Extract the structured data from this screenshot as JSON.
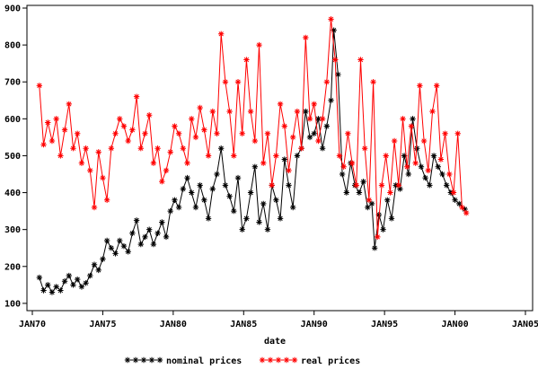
{
  "chart_data": {
    "type": "line",
    "title": "",
    "xlabel": "date",
    "ylabel": "",
    "x_ticks": [
      "JAN70",
      "JAN75",
      "JAN80",
      "JAN85",
      "JAN90",
      "JAN95",
      "JAN00",
      "JAN05"
    ],
    "x_range": [
      1970,
      2005
    ],
    "y_ticks": [
      100,
      200,
      300,
      400,
      500,
      600,
      700,
      800,
      900
    ],
    "ylim": [
      90,
      900
    ],
    "grid": false,
    "legend_position": "bottom",
    "series": [
      {
        "name": "nominal prices",
        "color": "#000000",
        "marker": "asterisk",
        "points": [
          [
            1970.5,
            170
          ],
          [
            1970.8,
            135
          ],
          [
            1971.1,
            150
          ],
          [
            1971.4,
            130
          ],
          [
            1971.7,
            145
          ],
          [
            1972.0,
            135
          ],
          [
            1972.3,
            160
          ],
          [
            1972.6,
            175
          ],
          [
            1972.9,
            150
          ],
          [
            1973.2,
            165
          ],
          [
            1973.5,
            145
          ],
          [
            1973.8,
            155
          ],
          [
            1974.1,
            175
          ],
          [
            1974.4,
            205
          ],
          [
            1974.7,
            190
          ],
          [
            1975.0,
            220
          ],
          [
            1975.3,
            270
          ],
          [
            1975.6,
            250
          ],
          [
            1975.9,
            235
          ],
          [
            1976.2,
            270
          ],
          [
            1976.5,
            255
          ],
          [
            1976.8,
            240
          ],
          [
            1977.1,
            290
          ],
          [
            1977.4,
            325
          ],
          [
            1977.7,
            260
          ],
          [
            1978.0,
            280
          ],
          [
            1978.3,
            300
          ],
          [
            1978.6,
            260
          ],
          [
            1978.9,
            290
          ],
          [
            1979.2,
            320
          ],
          [
            1979.5,
            280
          ],
          [
            1979.8,
            350
          ],
          [
            1980.1,
            380
          ],
          [
            1980.4,
            360
          ],
          [
            1980.7,
            410
          ],
          [
            1981.0,
            440
          ],
          [
            1981.3,
            400
          ],
          [
            1981.6,
            360
          ],
          [
            1981.9,
            420
          ],
          [
            1982.2,
            380
          ],
          [
            1982.5,
            330
          ],
          [
            1982.8,
            410
          ],
          [
            1983.1,
            450
          ],
          [
            1983.4,
            520
          ],
          [
            1983.7,
            420
          ],
          [
            1984.0,
            390
          ],
          [
            1984.3,
            350
          ],
          [
            1984.6,
            440
          ],
          [
            1984.9,
            300
          ],
          [
            1985.2,
            330
          ],
          [
            1985.5,
            400
          ],
          [
            1985.8,
            470
          ],
          [
            1986.1,
            320
          ],
          [
            1986.4,
            370
          ],
          [
            1986.7,
            300
          ],
          [
            1987.0,
            420
          ],
          [
            1987.3,
            380
          ],
          [
            1987.6,
            330
          ],
          [
            1987.9,
            490
          ],
          [
            1988.2,
            420
          ],
          [
            1988.5,
            360
          ],
          [
            1988.8,
            500
          ],
          [
            1989.1,
            520
          ],
          [
            1989.4,
            620
          ],
          [
            1989.7,
            550
          ],
          [
            1990.0,
            560
          ],
          [
            1990.3,
            600
          ],
          [
            1990.6,
            520
          ],
          [
            1990.9,
            580
          ],
          [
            1991.2,
            650
          ],
          [
            1991.4,
            840
          ],
          [
            1991.7,
            720
          ],
          [
            1992.0,
            450
          ],
          [
            1992.3,
            400
          ],
          [
            1992.6,
            480
          ],
          [
            1992.9,
            420
          ],
          [
            1993.2,
            400
          ],
          [
            1993.5,
            430
          ],
          [
            1993.8,
            360
          ],
          [
            1994.1,
            370
          ],
          [
            1994.3,
            250
          ],
          [
            1994.6,
            340
          ],
          [
            1994.9,
            300
          ],
          [
            1995.2,
            380
          ],
          [
            1995.5,
            330
          ],
          [
            1995.8,
            420
          ],
          [
            1996.1,
            410
          ],
          [
            1996.4,
            500
          ],
          [
            1996.7,
            450
          ],
          [
            1997.0,
            600
          ],
          [
            1997.3,
            520
          ],
          [
            1997.6,
            470
          ],
          [
            1997.9,
            440
          ],
          [
            1998.2,
            420
          ],
          [
            1998.5,
            500
          ],
          [
            1998.8,
            470
          ],
          [
            1999.1,
            450
          ],
          [
            1999.4,
            420
          ],
          [
            1999.7,
            400
          ],
          [
            2000.0,
            380
          ],
          [
            2000.3,
            370
          ],
          [
            2000.7,
            355
          ]
        ]
      },
      {
        "name": "real prices",
        "color": "#ff0000",
        "marker": "asterisk",
        "points": [
          [
            1970.5,
            690
          ],
          [
            1970.8,
            530
          ],
          [
            1971.1,
            590
          ],
          [
            1971.4,
            540
          ],
          [
            1971.7,
            600
          ],
          [
            1972.0,
            500
          ],
          [
            1972.3,
            570
          ],
          [
            1972.6,
            640
          ],
          [
            1972.9,
            520
          ],
          [
            1973.2,
            560
          ],
          [
            1973.5,
            480
          ],
          [
            1973.8,
            520
          ],
          [
            1974.1,
            460
          ],
          [
            1974.4,
            360
          ],
          [
            1974.7,
            510
          ],
          [
            1975.0,
            440
          ],
          [
            1975.3,
            380
          ],
          [
            1975.6,
            520
          ],
          [
            1975.9,
            560
          ],
          [
            1976.2,
            600
          ],
          [
            1976.5,
            580
          ],
          [
            1976.8,
            540
          ],
          [
            1977.1,
            570
          ],
          [
            1977.4,
            660
          ],
          [
            1977.7,
            520
          ],
          [
            1978.0,
            560
          ],
          [
            1978.3,
            610
          ],
          [
            1978.6,
            480
          ],
          [
            1978.9,
            520
          ],
          [
            1979.2,
            430
          ],
          [
            1979.5,
            460
          ],
          [
            1979.8,
            510
          ],
          [
            1980.1,
            580
          ],
          [
            1980.4,
            560
          ],
          [
            1980.7,
            520
          ],
          [
            1981.0,
            480
          ],
          [
            1981.3,
            600
          ],
          [
            1981.6,
            550
          ],
          [
            1981.9,
            630
          ],
          [
            1982.2,
            570
          ],
          [
            1982.5,
            500
          ],
          [
            1982.8,
            620
          ],
          [
            1983.1,
            560
          ],
          [
            1983.4,
            830
          ],
          [
            1983.7,
            700
          ],
          [
            1984.0,
            620
          ],
          [
            1984.3,
            500
          ],
          [
            1984.6,
            700
          ],
          [
            1984.9,
            560
          ],
          [
            1985.2,
            760
          ],
          [
            1985.5,
            620
          ],
          [
            1985.8,
            540
          ],
          [
            1986.1,
            800
          ],
          [
            1986.4,
            480
          ],
          [
            1986.7,
            560
          ],
          [
            1987.0,
            420
          ],
          [
            1987.3,
            500
          ],
          [
            1987.6,
            640
          ],
          [
            1987.9,
            580
          ],
          [
            1988.2,
            460
          ],
          [
            1988.5,
            550
          ],
          [
            1988.8,
            620
          ],
          [
            1989.1,
            520
          ],
          [
            1989.4,
            820
          ],
          [
            1989.7,
            600
          ],
          [
            1990.0,
            640
          ],
          [
            1990.3,
            540
          ],
          [
            1990.6,
            600
          ],
          [
            1990.9,
            700
          ],
          [
            1991.2,
            870
          ],
          [
            1991.5,
            760
          ],
          [
            1991.8,
            500
          ],
          [
            1992.1,
            470
          ],
          [
            1992.4,
            560
          ],
          [
            1992.7,
            480
          ],
          [
            1993.0,
            420
          ],
          [
            1993.3,
            760
          ],
          [
            1993.6,
            520
          ],
          [
            1993.9,
            380
          ],
          [
            1994.2,
            700
          ],
          [
            1994.5,
            280
          ],
          [
            1994.8,
            420
          ],
          [
            1995.1,
            500
          ],
          [
            1995.4,
            400
          ],
          [
            1995.7,
            540
          ],
          [
            1996.0,
            420
          ],
          [
            1996.3,
            600
          ],
          [
            1996.6,
            470
          ],
          [
            1996.9,
            580
          ],
          [
            1997.2,
            480
          ],
          [
            1997.5,
            690
          ],
          [
            1997.8,
            540
          ],
          [
            1998.1,
            460
          ],
          [
            1998.4,
            620
          ],
          [
            1998.7,
            690
          ],
          [
            1999.0,
            490
          ],
          [
            1999.3,
            560
          ],
          [
            1999.6,
            450
          ],
          [
            1999.9,
            400
          ],
          [
            2000.2,
            560
          ],
          [
            2000.5,
            360
          ],
          [
            2000.8,
            345
          ]
        ]
      }
    ]
  }
}
